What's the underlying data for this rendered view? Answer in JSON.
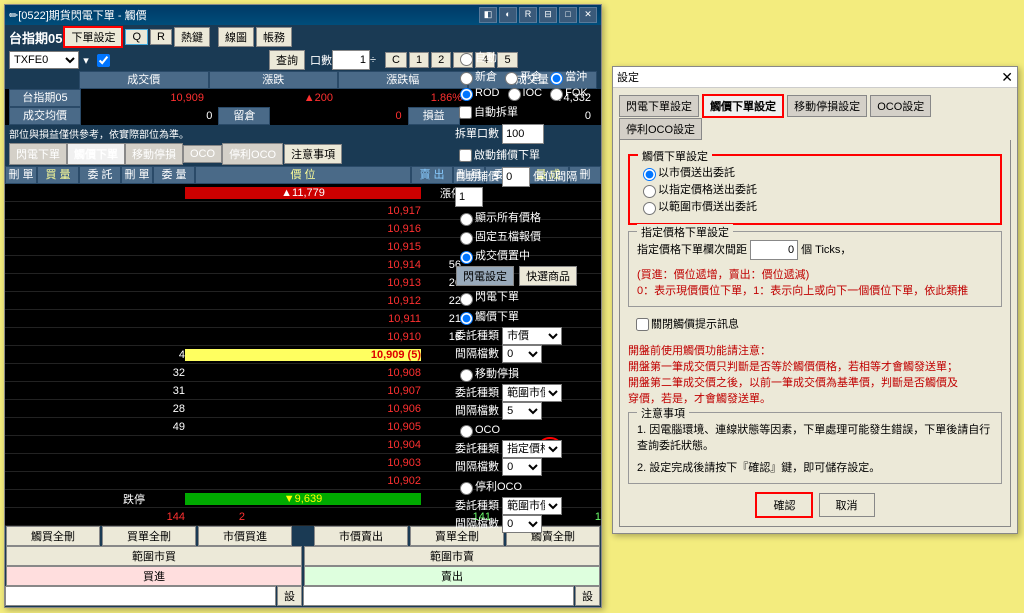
{
  "main": {
    "title": "[0522]期貨閃電下單 - 觸價",
    "winIcons": [
      "◧",
      "◐",
      "R",
      "⊟",
      "□",
      "✕"
    ],
    "toprow": {
      "sym": "台指期05",
      "btn1": "下單設定",
      "q": "Q",
      "r": "R",
      "hotkey": "熱鍵",
      "chart": "線圖",
      "acct": "帳務"
    },
    "row2": {
      "sel": "TXFE0",
      "find": "查詢",
      "qtyLbl": "口數",
      "qty": "1",
      "c": "C",
      "nums": [
        "1",
        "2",
        "3",
        "4",
        "5"
      ]
    },
    "hd": [
      "成交價",
      "漲跌",
      "漲跌幅",
      "成交量"
    ],
    "sym": "台指期05",
    "px": "10,909",
    "chg": "▲200",
    "pct": "1.86%",
    "vol": "74,332",
    "avgLbl": "成交均價",
    "avg": "0",
    "holdLbl": "留倉",
    "hold": "0",
    "plLbl": "損益",
    "pl": "0",
    "note": "部位與損益僅供參考，依實際部位為準。",
    "tabs": [
      "閃電下單",
      "觸價下單",
      "移動停損",
      "OCO",
      "停利OCO"
    ],
    "noteBtn": "注意事項",
    "tblHd": [
      "刪 單",
      "買 量",
      "委 託",
      "刪 單",
      "委 量",
      "價 位",
      "賣 出",
      "刪 單",
      "委 託",
      "量 成",
      "刪"
    ],
    "up": "▲11,779",
    "upLbl": "漲停",
    "dn": "▼9,639",
    "dnLbl": "跌停",
    "ladder": [
      {
        "p": "10,917"
      },
      {
        "p": "10,916"
      },
      {
        "p": "10,915"
      },
      {
        "p": "10,914",
        "a": "56"
      },
      {
        "p": "10,913",
        "a": "26"
      },
      {
        "p": "10,912",
        "a": "22"
      },
      {
        "p": "10,911",
        "a": "21"
      },
      {
        "p": "10,910",
        "a": "16"
      },
      {
        "p": "10,909 (5)",
        "b": "4",
        "cur": true
      },
      {
        "p": "10,908",
        "b": "32"
      },
      {
        "p": "10,907",
        "b": "31"
      },
      {
        "p": "10,906",
        "b": "28"
      },
      {
        "p": "10,905",
        "b": "49"
      },
      {
        "p": "10,904",
        "mk": "1"
      },
      {
        "p": "10,903"
      },
      {
        "p": "10,902"
      }
    ],
    "sumB": "144",
    "sumBR": "2",
    "sumS": "141",
    "sumSR": "1",
    "btm": [
      "觸買全刪",
      "買單全刪",
      "市價買進",
      "",
      "市價賣出",
      "賣單全刪",
      "觸賣全刪"
    ],
    "btm2L": "範圍市買",
    "btm2R": "範圍市賣",
    "buy": "買進",
    "sell": "賣出",
    "go": "設"
  },
  "rs": {
    "pos": [
      "自動",
      "新倉",
      "平倉",
      "當沖"
    ],
    "ord": [
      "ROD",
      "IOC",
      "FOK"
    ],
    "auto": "自動拆單",
    "qtyLbl": "拆單口數",
    "qty": "100",
    "en": "啟動鋪價下單",
    "auLbl": "自動鋪價",
    "au": "0",
    "ivLbl": "價位間隔",
    "iv": "1",
    "o": [
      "顯示所有價格",
      "固定五檔報價",
      "成交價置中"
    ],
    "sbtn": [
      "閃電設定",
      "快選商品"
    ],
    "m": [
      "閃電下單",
      "觸價下單"
    ],
    "otLbl": "委託種類",
    "ot": "市價",
    "gLbl": "間隔檔數",
    "g": "0",
    "ts": "移動停損",
    "ts1": "範圍市價",
    "ts2": "5",
    "oco": "OCO",
    "so": "停利OCO",
    "so1": "範圍市價",
    "so2": "0"
  },
  "dlg": {
    "title": "設定",
    "tabs": [
      "閃電下單設定",
      "觸價下單設定",
      "移動停損設定",
      "OCO設定",
      "停利OCO設定"
    ],
    "g1": "觸價下單設定",
    "r": [
      "以市價送出委託",
      "以指定價格送出委託",
      "以範圍市價送出委託"
    ],
    "g2": "指定價格下單設定",
    "g2t": "指定價格下單欄次間距",
    "g2v": "0",
    "g2u": "個 Ticks，",
    "h1": "(買進：價位遞增，賣出：價位遞減)",
    "h2": "0：表示現價價位下單，1：表示向上或向下一個價位下單，依此類推",
    "ck": "關閉觸價提示訊息",
    "w": [
      "開盤前使用觸價功能請注意：",
      "開盤第一筆成交價只判斷是否等於觸價價格，若相等才會觸發送單；",
      "開盤第二筆成交價之後，以前一筆成交價為基準價，判斷是否觸價及",
      "穿價，若是，才會觸發送單。"
    ],
    "nt": "注意事項",
    "n1": "1. 因電腦環境、連線狀態等因素，下單處理可能發生錯誤，下單後請自行查詢委託狀態。",
    "n2": "2. 設定完成後請按下『確認』鍵，即可儲存設定。",
    "ok": "確認",
    "cancel": "取消"
  }
}
